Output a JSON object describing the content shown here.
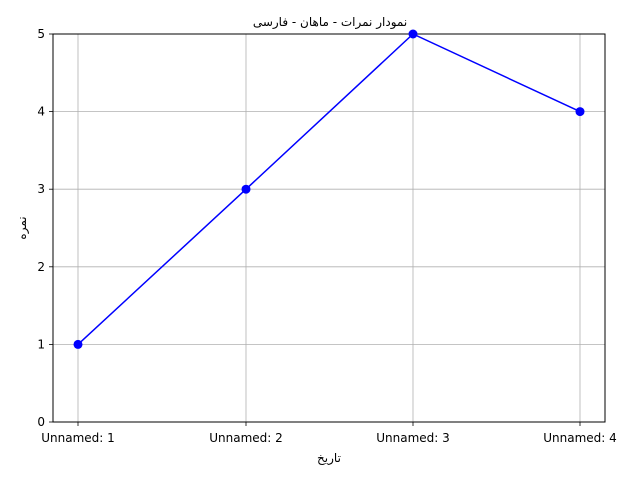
{
  "chart_data": {
    "type": "line",
    "title": "نمودار نمرات - ماهان - فارسی",
    "xlabel": "تاریخ",
    "ylabel": "نمره",
    "categories": [
      "Unnamed: 1",
      "Unnamed: 2",
      "Unnamed: 3",
      "Unnamed: 4"
    ],
    "series": [
      {
        "values": [
          1,
          3,
          5,
          4
        ]
      }
    ],
    "ylim": [
      0,
      5
    ],
    "yticks": [
      "0",
      "1",
      "2",
      "3",
      "4",
      "5"
    ],
    "grid": true,
    "line_color": "#0000ff",
    "marker": "circle"
  }
}
